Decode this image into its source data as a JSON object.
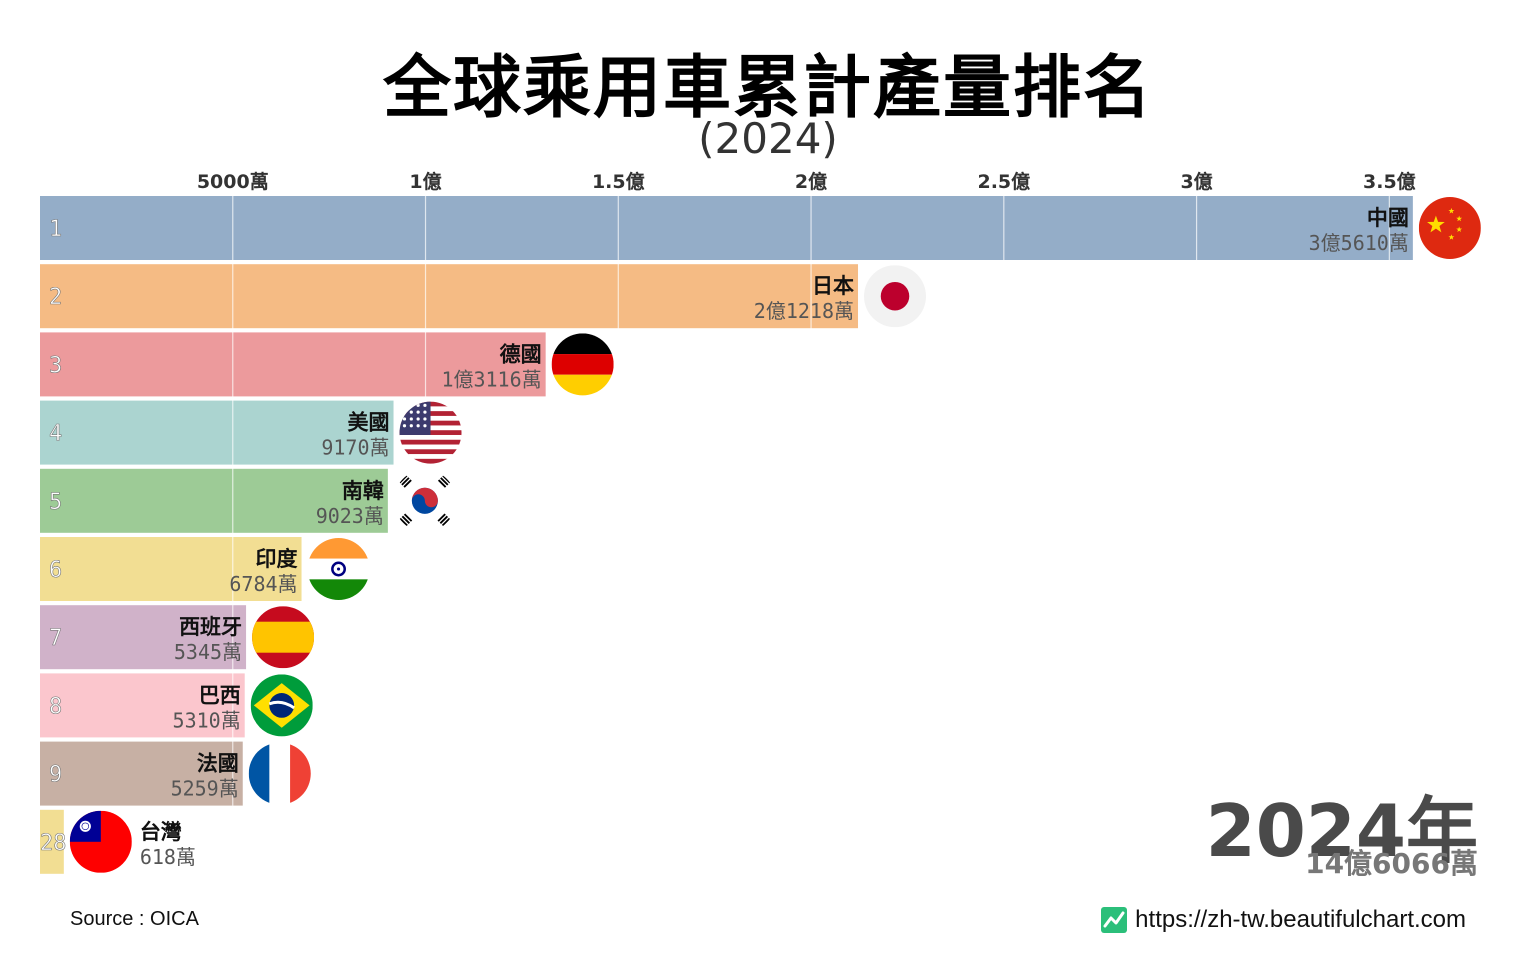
{
  "title": "全球乘用車累計產量排名",
  "subtitle": "(2024)",
  "year_label": "2024年",
  "total_label": "14億6066萬",
  "source": "Source : OICA",
  "website": "https://zh-tw.beautifulchart.com",
  "chart_data": {
    "type": "bar",
    "orientation": "horizontal",
    "title": "全球乘用車累計產量排名",
    "subtitle": "(2024)",
    "xlim": [
      0,
      380000000
    ],
    "x_ticks": [
      {
        "value": 50000000,
        "label": "5000萬"
      },
      {
        "value": 100000000,
        "label": "1億"
      },
      {
        "value": 150000000,
        "label": "1.5億"
      },
      {
        "value": 200000000,
        "label": "2億"
      },
      {
        "value": 250000000,
        "label": "2.5億"
      },
      {
        "value": 300000000,
        "label": "3億"
      },
      {
        "value": 350000000,
        "label": "3.5億"
      }
    ],
    "bars": [
      {
        "rank": "1",
        "name": "中國",
        "value": 356100000,
        "value_label": "3億5610萬",
        "color": "#94adc8",
        "flag": "china-flag"
      },
      {
        "rank": "2",
        "name": "日本",
        "value": 212180000,
        "value_label": "2億1218萬",
        "color": "#f5bb84",
        "flag": "japan-flag"
      },
      {
        "rank": "3",
        "name": "德國",
        "value": 131160000,
        "value_label": "1億3116萬",
        "color": "#ec9a9c",
        "flag": "germany-flag"
      },
      {
        "rank": "4",
        "name": "美國",
        "value": 91700000,
        "value_label": "9170萬",
        "color": "#abd4d0",
        "flag": "usa-flag"
      },
      {
        "rank": "5",
        "name": "南韓",
        "value": 90230000,
        "value_label": "9023萬",
        "color": "#9dcb96",
        "flag": "south-korea-flag"
      },
      {
        "rank": "6",
        "name": "印度",
        "value": 67840000,
        "value_label": "6784萬",
        "color": "#f2de93",
        "flag": "india-flag"
      },
      {
        "rank": "7",
        "name": "西班牙",
        "value": 53450000,
        "value_label": "5345萬",
        "color": "#d0b2c9",
        "flag": "spain-flag"
      },
      {
        "rank": "8",
        "name": "巴西",
        "value": 53100000,
        "value_label": "5310萬",
        "color": "#fbc6cd",
        "flag": "brazil-flag"
      },
      {
        "rank": "9",
        "name": "法國",
        "value": 52590000,
        "value_label": "5259萬",
        "color": "#c7b0a4",
        "flag": "france-flag"
      },
      {
        "rank": "28",
        "name": "台灣",
        "value": 6180000,
        "value_label": "618萬",
        "color": "#f2de93",
        "flag": "taiwan-flag"
      }
    ]
  }
}
